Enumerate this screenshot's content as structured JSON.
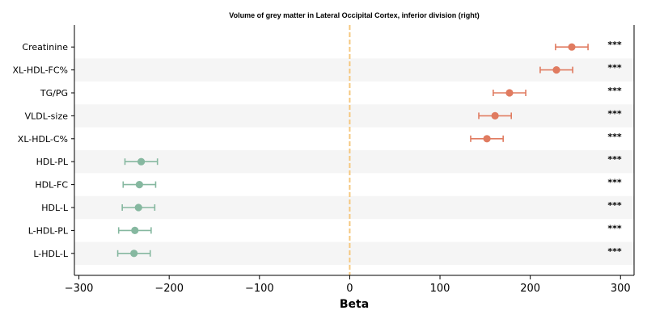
{
  "chart_data": {
    "type": "scatter",
    "title": "Volume of grey matter in Lateral Occipital Cortex, inferior division (right)",
    "xlabel": "Beta",
    "ylabel": "",
    "xlim": [
      -305,
      315
    ],
    "xticks": [
      -300,
      -200,
      -100,
      0,
      100,
      200,
      300
    ],
    "xtick_labels": [
      "−300",
      "−200",
      "−100",
      "0",
      "100",
      "200",
      "300"
    ],
    "reference_line": 0,
    "grid": false,
    "colors": {
      "positive": "#e07b60",
      "negative": "#86b8a0",
      "reference": "#f5c77e",
      "band": "#f5f5f5"
    },
    "categories": [
      "Creatinine",
      "XL-HDL-FC%",
      "TG/PG",
      "VLDL-size",
      "XL-HDL-C%",
      "HDL-PL",
      "HDL-FC",
      "HDL-L",
      "L-HDL-PL",
      "L-HDL-L"
    ],
    "series": [
      {
        "points": [
          {
            "label": "Creatinine",
            "beta": 246,
            "ci_low": 228,
            "ci_high": 264,
            "significance": "***"
          },
          {
            "label": "XL-HDL-FC%",
            "beta": 229,
            "ci_low": 211,
            "ci_high": 247,
            "significance": "***"
          },
          {
            "label": "TG/PG",
            "beta": 177,
            "ci_low": 159,
            "ci_high": 195,
            "significance": "***"
          },
          {
            "label": "VLDL-size",
            "beta": 161,
            "ci_low": 143,
            "ci_high": 179,
            "significance": "***"
          },
          {
            "label": "XL-HDL-C%",
            "beta": 152,
            "ci_low": 134,
            "ci_high": 170,
            "significance": "***"
          },
          {
            "label": "HDL-PL",
            "beta": -231,
            "ci_low": -249,
            "ci_high": -213,
            "significance": "***"
          },
          {
            "label": "HDL-FC",
            "beta": -233,
            "ci_low": -251,
            "ci_high": -215,
            "significance": "***"
          },
          {
            "label": "HDL-L",
            "beta": -234,
            "ci_low": -252,
            "ci_high": -216,
            "significance": "***"
          },
          {
            "label": "L-HDL-PL",
            "beta": -238,
            "ci_low": -256,
            "ci_high": -220,
            "significance": "***"
          },
          {
            "label": "L-HDL-L",
            "beta": -239,
            "ci_low": -257,
            "ci_high": -221,
            "significance": "***"
          }
        ]
      }
    ]
  }
}
